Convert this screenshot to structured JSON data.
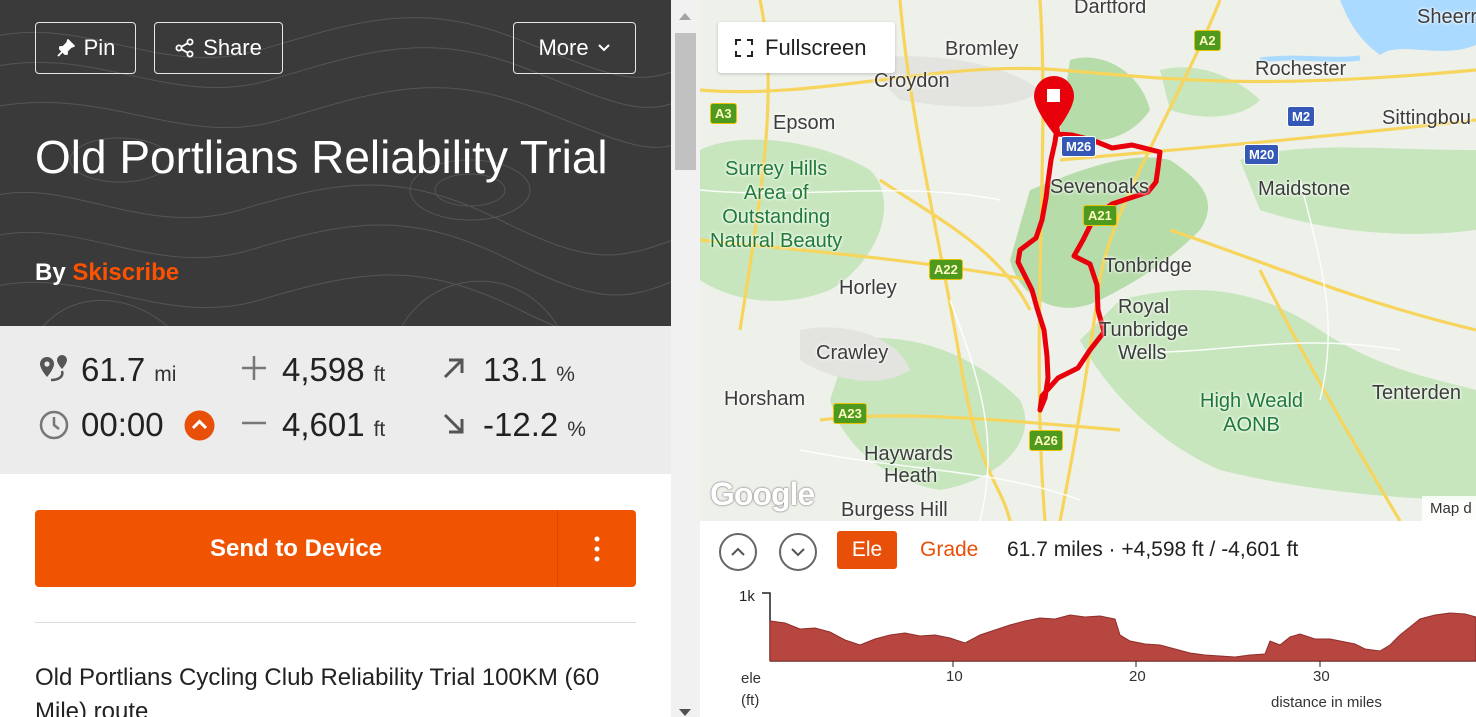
{
  "header": {
    "pin_label": "Pin",
    "share_label": "Share",
    "more_label": "More",
    "title": "Old Portlians Reliability Trial",
    "by_prefix": "By",
    "author": "Skiscribe"
  },
  "stats": {
    "distance": {
      "value": "61.7",
      "unit": "mi"
    },
    "elevation_gain": {
      "value": "4,598",
      "unit": "ft"
    },
    "max_grade": {
      "value": "13.1",
      "unit": "%"
    },
    "time": {
      "value": "00:00"
    },
    "elevation_loss": {
      "value": "4,601",
      "unit": "ft"
    },
    "min_grade": {
      "value": "-12.2",
      "unit": "%"
    }
  },
  "actions": {
    "send_label": "Send to Device"
  },
  "description": "Old Portlians Cycling Club Reliability Trial 100KM (60 Mile) route",
  "map": {
    "fullscreen_label": "Fullscreen",
    "google_label": "Google",
    "map_data_label": "Map d",
    "places": [
      "Dartford",
      "Sheerr",
      "Bromley",
      "Croydon",
      "Rochester",
      "Epsom",
      "Sittingbou",
      "Sevenoaks",
      "Maidstone",
      "Tonbridge",
      "Horley",
      "Royal",
      "Tunbridge",
      "Wells",
      "Crawley",
      "Horsham",
      "Tenterden",
      "Haywards",
      "Heath",
      "Burgess Hill"
    ],
    "areas": {
      "surrey_hills": [
        "Surrey Hills",
        "Area of",
        "Outstanding",
        "Natural Beauty"
      ],
      "high_weald": [
        "High Weald",
        "AONB"
      ]
    },
    "roads": [
      "A2",
      "A3",
      "M2",
      "M20",
      "M26",
      "A21",
      "A22",
      "A23",
      "A26"
    ]
  },
  "elevation": {
    "ele_tab": "Ele",
    "grade_tab": "Grade",
    "summary": "61.7 miles · +4,598 ft / -4,601 ft",
    "y_tick": "1k",
    "y_label_1": "ele",
    "y_label_2": "(ft)",
    "x_ticks": [
      "10",
      "20",
      "30"
    ],
    "x_label": "distance in miles"
  },
  "colors": {
    "accent": "#fc5200",
    "route": "#e8000b",
    "elevation_fill": "#b6463f"
  }
}
